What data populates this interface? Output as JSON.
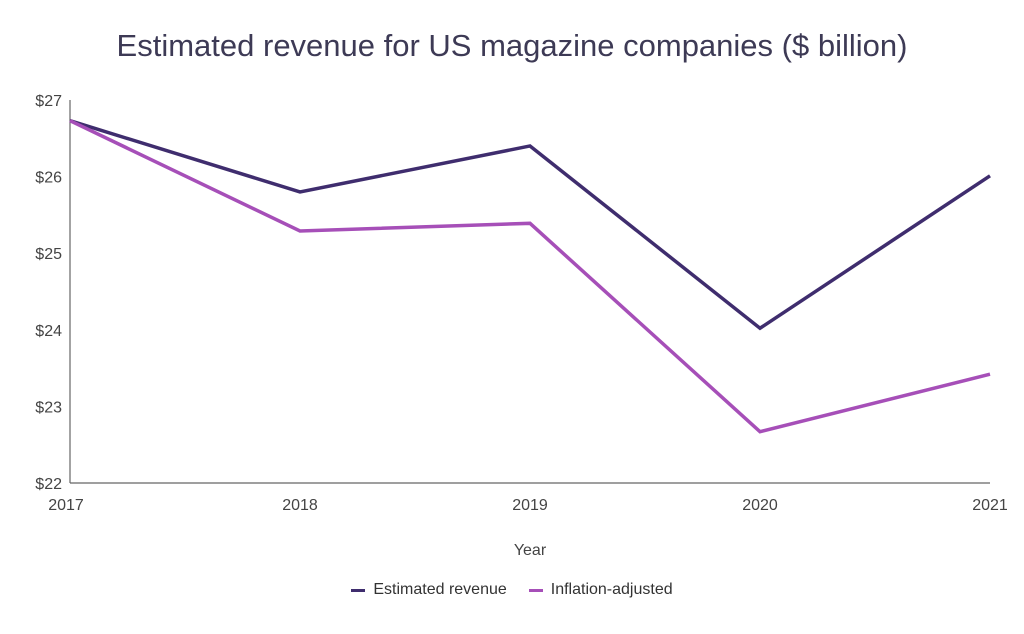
{
  "chart_data": {
    "type": "line",
    "title": "Estimated revenue for US magazine companies ($ billion)",
    "xlabel": "Year",
    "ylabel": "",
    "x": [
      "2017",
      "2018",
      "2019",
      "2020",
      "2021"
    ],
    "ylim": [
      22,
      27
    ],
    "yticks": [
      "$22",
      "$23",
      "$24",
      "$25",
      "$26",
      "$27"
    ],
    "grid": false,
    "legend_position": "bottom",
    "series": [
      {
        "name": "Estimated revenue",
        "color": "#3f2d6e",
        "values": [
          26.73,
          25.8,
          26.4,
          24.02,
          26.01
        ]
      },
      {
        "name": "Inflation-adjusted",
        "color": "#a64fb8",
        "values": [
          26.73,
          25.29,
          25.39,
          22.67,
          23.42
        ]
      }
    ]
  }
}
